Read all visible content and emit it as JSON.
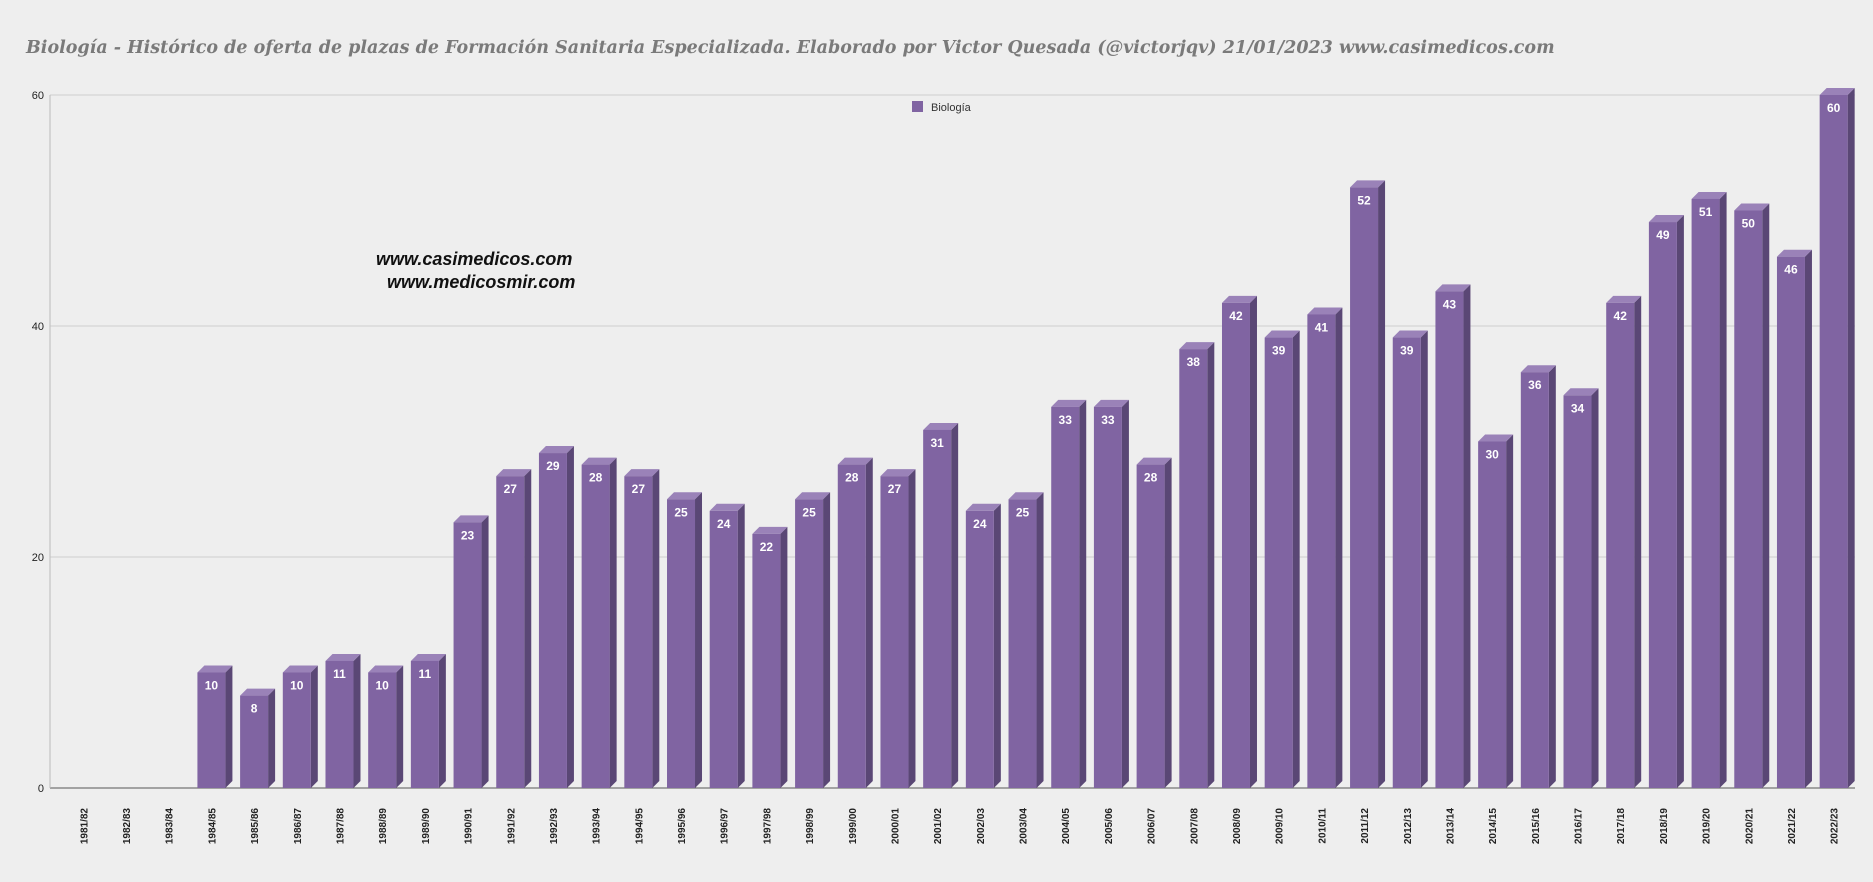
{
  "title": "Biología - Histórico de oferta de plazas de Formación Sanitaria Especializada. Elaborado por Victor Quesada (@victorjqv)  21/01/2023 www.casimedicos.com",
  "watermark": {
    "line1": "www.casimedicos.com",
    "line2": "www.medicosmir.com"
  },
  "chart_data": {
    "type": "bar",
    "title": "Biología - Histórico de oferta de plazas de Formación Sanitaria Especializada. Elaborado por Victor Quesada (@victorjqv)  21/01/2023 www.casimedicos.com",
    "categories": [
      "1981/82",
      "1982/83",
      "1983/84",
      "1984/85",
      "1985/86",
      "1986/87",
      "1987/88",
      "1988/89",
      "1989/90",
      "1990/91",
      "1991/92",
      "1992/93",
      "1993/94",
      "1994/95",
      "1995/96",
      "1996/97",
      "1997/98",
      "1998/99",
      "1999/00",
      "2000/01",
      "2001/02",
      "2002/03",
      "2003/04",
      "2004/05",
      "2005/06",
      "2006/07",
      "2007/08",
      "2008/09",
      "2009/10",
      "2010/11",
      "2011/12",
      "2012/13",
      "2013/14",
      "2014/15",
      "2015/16",
      "2016/17",
      "2017/18",
      "2018/19",
      "2019/20",
      "2020/21",
      "2021/22",
      "2022/23"
    ],
    "series": [
      {
        "name": "Biología",
        "values": [
          null,
          null,
          null,
          10,
          8,
          10,
          11,
          10,
          11,
          23,
          27,
          29,
          28,
          27,
          25,
          24,
          22,
          25,
          28,
          27,
          31,
          24,
          25,
          33,
          33,
          28,
          38,
          42,
          39,
          41,
          52,
          39,
          43,
          30,
          36,
          34,
          42,
          49,
          51,
          50,
          46,
          60
        ]
      }
    ],
    "ylim": [
      0,
      60
    ],
    "yticks": [
      0,
      20,
      40,
      60
    ],
    "grid": true,
    "legend": "top-center",
    "colors": {
      "bar_front": "#8064a2",
      "bar_side": "#5a4775",
      "bar_top": "#9a82b8",
      "grid": "#cfcfcf",
      "background": "#eeeeee"
    }
  }
}
